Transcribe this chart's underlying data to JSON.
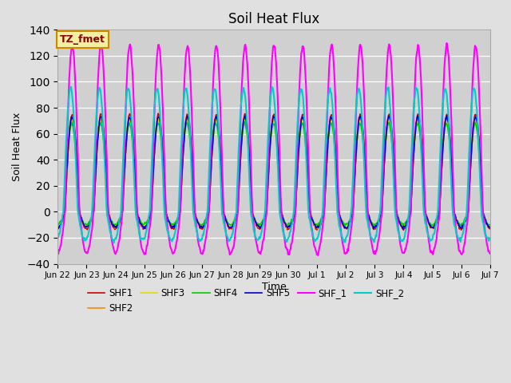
{
  "title": "Soil Heat Flux",
  "ylabel": "Soil Heat Flux",
  "xlabel": "Time",
  "ylim": [
    -40,
    140
  ],
  "background_color": "#e0e0e0",
  "plot_bg_color": "#d0d0d0",
  "annotation_text": "TZ_fmet",
  "annotation_color": "#8B0000",
  "annotation_bg": "#f5f0a0",
  "annotation_edge": "#cc8800",
  "series": {
    "SHF1": {
      "color": "#cc0000",
      "lw": 1.2
    },
    "SHF2": {
      "color": "#ff8800",
      "lw": 1.2
    },
    "SHF3": {
      "color": "#dddd00",
      "lw": 1.2
    },
    "SHF4": {
      "color": "#00cc00",
      "lw": 1.2
    },
    "SHF5": {
      "color": "#0000cc",
      "lw": 1.2
    },
    "SHF_1": {
      "color": "#ff00ff",
      "lw": 1.5
    },
    "SHF_2": {
      "color": "#00cccc",
      "lw": 1.5
    }
  },
  "xtick_labels": [
    "Jun 22",
    "Jun 23",
    "Jun 24",
    "Jun 25",
    "Jun 26",
    "Jun 27",
    "Jun 28",
    "Jun 29",
    "Jun 30",
    "Jul 1",
    "Jul 2",
    "Jul 3",
    "Jul 4",
    "Jul 5",
    "Jul 6",
    "Jul 7"
  ],
  "num_days": 15,
  "pts_per_day": 48
}
